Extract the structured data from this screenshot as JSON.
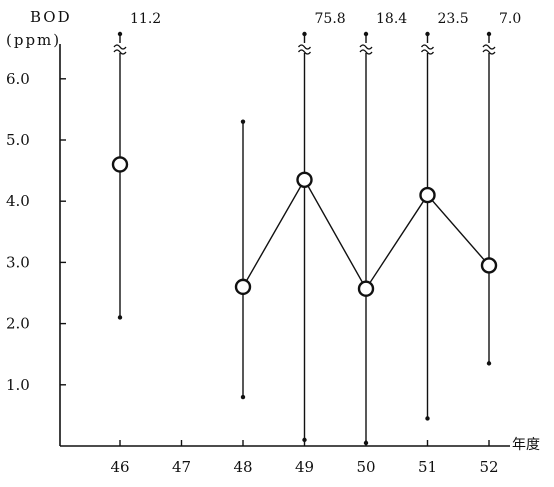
{
  "chart_data": {
    "type": "scatter",
    "ylabel_line1": "BOD",
    "ylabel_line2": "(ppm)",
    "xlabel": "年度",
    "yticks": [
      "1.0",
      "2.0",
      "3.0",
      "4.0",
      "5.0",
      "6.0"
    ],
    "ytick_values": [
      1.0,
      2.0,
      3.0,
      4.0,
      5.0,
      6.0
    ],
    "ylim": [
      0,
      6.6
    ],
    "categories": [
      "46",
      "47",
      "48",
      "49",
      "50",
      "51",
      "52"
    ],
    "mean_connected_from": "48",
    "points": [
      {
        "year": "46",
        "mean": 4.6,
        "min": 2.1,
        "max": 11.2,
        "max_label": "11.2",
        "max_off_scale": true
      },
      {
        "year": "48",
        "mean": 2.6,
        "min": 0.8,
        "max": 5.3,
        "max_label": "",
        "max_off_scale": false
      },
      {
        "year": "49",
        "mean": 4.35,
        "min": 0.1,
        "max": 75.8,
        "max_label": "75.8",
        "max_off_scale": true
      },
      {
        "year": "50",
        "mean": 2.57,
        "min": 0.05,
        "max": 18.4,
        "max_label": "18.4",
        "max_off_scale": true
      },
      {
        "year": "51",
        "mean": 4.1,
        "min": 0.45,
        "max": 23.5,
        "max_label": "23.5",
        "max_off_scale": true
      },
      {
        "year": "52",
        "mean": 2.95,
        "min": 1.35,
        "max": 7.0,
        "max_label": "7.0",
        "max_off_scale": true
      }
    ]
  }
}
